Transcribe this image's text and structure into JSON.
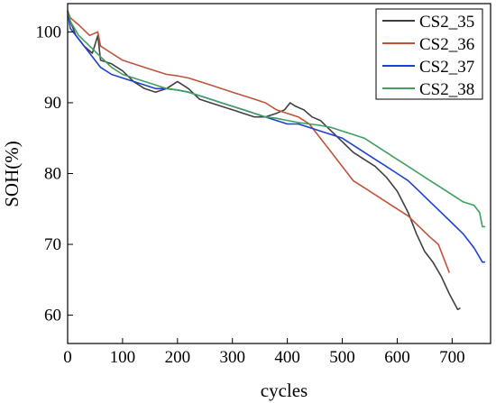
{
  "chart_data": {
    "type": "line",
    "title": "",
    "xlabel": "cycles",
    "ylabel": "SOH(%)",
    "xlim": [
      0,
      770
    ],
    "ylim": [
      56,
      104
    ],
    "xticks": [
      0,
      100,
      200,
      300,
      400,
      500,
      600,
      700
    ],
    "yticks": [
      60,
      70,
      80,
      90,
      100
    ],
    "grid": false,
    "legend": "top-right",
    "series": [
      {
        "name": "CS2_35",
        "color": "#404040",
        "points": [
          [
            0,
            103
          ],
          [
            5,
            101.5
          ],
          [
            15,
            99.5
          ],
          [
            30,
            98
          ],
          [
            45,
            97
          ],
          [
            55,
            99.5
          ],
          [
            60,
            96
          ],
          [
            80,
            95.5
          ],
          [
            100,
            94.5
          ],
          [
            120,
            93
          ],
          [
            140,
            92
          ],
          [
            160,
            91.5
          ],
          [
            180,
            92
          ],
          [
            200,
            93
          ],
          [
            220,
            92
          ],
          [
            240,
            90.5
          ],
          [
            260,
            90
          ],
          [
            280,
            89.5
          ],
          [
            300,
            89
          ],
          [
            320,
            88.5
          ],
          [
            340,
            88
          ],
          [
            360,
            88
          ],
          [
            380,
            88.5
          ],
          [
            395,
            89
          ],
          [
            405,
            90
          ],
          [
            415,
            89.5
          ],
          [
            430,
            89
          ],
          [
            445,
            88
          ],
          [
            460,
            87.5
          ],
          [
            480,
            86
          ],
          [
            500,
            84.5
          ],
          [
            520,
            83
          ],
          [
            540,
            82
          ],
          [
            560,
            81
          ],
          [
            580,
            79.5
          ],
          [
            600,
            77.5
          ],
          [
            620,
            74.5
          ],
          [
            635,
            71.5
          ],
          [
            650,
            69
          ],
          [
            665,
            67.5
          ],
          [
            680,
            65.5
          ],
          [
            695,
            63
          ],
          [
            710,
            60.8
          ],
          [
            715,
            61
          ]
        ]
      },
      {
        "name": "CS2_36",
        "color": "#c0533a",
        "points": [
          [
            0,
            103
          ],
          [
            5,
            102
          ],
          [
            20,
            101
          ],
          [
            40,
            99.5
          ],
          [
            55,
            100
          ],
          [
            60,
            98
          ],
          [
            80,
            97
          ],
          [
            100,
            96
          ],
          [
            120,
            95.5
          ],
          [
            140,
            95
          ],
          [
            160,
            94.5
          ],
          [
            180,
            94
          ],
          [
            200,
            93.8
          ],
          [
            220,
            93.5
          ],
          [
            240,
            93
          ],
          [
            260,
            92.5
          ],
          [
            280,
            92
          ],
          [
            300,
            91.5
          ],
          [
            320,
            91
          ],
          [
            340,
            90.5
          ],
          [
            360,
            90
          ],
          [
            380,
            89
          ],
          [
            400,
            88.5
          ],
          [
            420,
            88
          ],
          [
            440,
            87
          ],
          [
            460,
            85
          ],
          [
            480,
            83
          ],
          [
            500,
            81
          ],
          [
            520,
            79
          ],
          [
            540,
            78
          ],
          [
            560,
            77
          ],
          [
            580,
            76
          ],
          [
            600,
            75
          ],
          [
            620,
            74
          ],
          [
            640,
            72.5
          ],
          [
            660,
            71
          ],
          [
            675,
            70
          ],
          [
            685,
            68
          ],
          [
            695,
            66
          ]
        ]
      },
      {
        "name": "CS2_37",
        "color": "#1f3fd1",
        "points": [
          [
            0,
            103
          ],
          [
            5,
            100.5
          ],
          [
            20,
            99
          ],
          [
            40,
            97
          ],
          [
            60,
            95
          ],
          [
            80,
            94
          ],
          [
            100,
            93.5
          ],
          [
            120,
            93
          ],
          [
            140,
            92.5
          ],
          [
            160,
            92
          ],
          [
            180,
            92
          ],
          [
            200,
            91.8
          ],
          [
            220,
            91.5
          ],
          [
            240,
            91
          ],
          [
            260,
            90.5
          ],
          [
            280,
            90
          ],
          [
            300,
            89.5
          ],
          [
            320,
            89
          ],
          [
            340,
            88.5
          ],
          [
            360,
            88
          ],
          [
            380,
            87.5
          ],
          [
            400,
            87
          ],
          [
            420,
            87
          ],
          [
            440,
            86.5
          ],
          [
            460,
            86
          ],
          [
            480,
            85.5
          ],
          [
            500,
            85
          ],
          [
            520,
            84
          ],
          [
            540,
            83
          ],
          [
            560,
            82
          ],
          [
            580,
            81
          ],
          [
            600,
            80
          ],
          [
            620,
            79
          ],
          [
            640,
            77.5
          ],
          [
            660,
            76
          ],
          [
            680,
            74.5
          ],
          [
            700,
            73
          ],
          [
            720,
            71.5
          ],
          [
            740,
            69.5
          ],
          [
            755,
            67.5
          ],
          [
            760,
            67.5
          ]
        ]
      },
      {
        "name": "CS2_38",
        "color": "#3f9f5f",
        "points": [
          [
            0,
            103
          ],
          [
            5,
            101.5
          ],
          [
            20,
            99.5
          ],
          [
            40,
            98
          ],
          [
            60,
            96.5
          ],
          [
            80,
            95
          ],
          [
            100,
            94
          ],
          [
            120,
            93.5
          ],
          [
            140,
            93
          ],
          [
            160,
            92.5
          ],
          [
            180,
            92
          ],
          [
            200,
            91.8
          ],
          [
            220,
            91.5
          ],
          [
            240,
            91
          ],
          [
            260,
            90.5
          ],
          [
            280,
            90
          ],
          [
            300,
            89.5
          ],
          [
            320,
            89
          ],
          [
            340,
            88.5
          ],
          [
            360,
            88
          ],
          [
            380,
            87.8
          ],
          [
            400,
            87.5
          ],
          [
            420,
            87.2
          ],
          [
            440,
            87
          ],
          [
            460,
            86.8
          ],
          [
            480,
            86.5
          ],
          [
            500,
            86
          ],
          [
            520,
            85.5
          ],
          [
            540,
            85
          ],
          [
            560,
            84
          ],
          [
            580,
            83
          ],
          [
            600,
            82
          ],
          [
            620,
            81
          ],
          [
            640,
            80
          ],
          [
            660,
            79
          ],
          [
            680,
            78
          ],
          [
            700,
            77
          ],
          [
            720,
            76
          ],
          [
            740,
            75.5
          ],
          [
            750,
            74.5
          ],
          [
            755,
            72.5
          ],
          [
            760,
            72.5
          ]
        ]
      }
    ]
  }
}
